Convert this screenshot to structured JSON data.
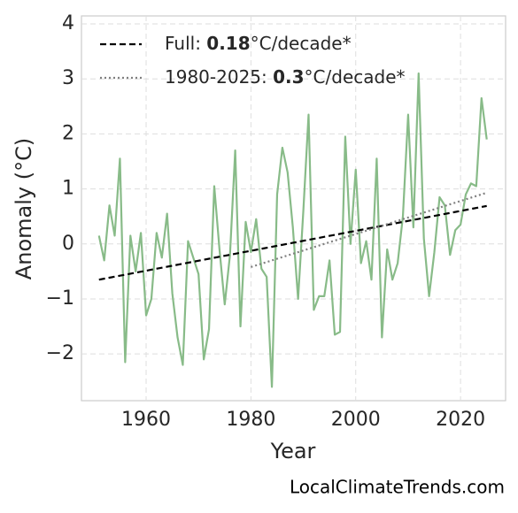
{
  "chart_data": {
    "type": "line",
    "xlabel": "Year",
    "ylabel": "Anomaly (°C)",
    "watermark": "LocalClimateTrends.com",
    "x": [
      1951,
      1952,
      1953,
      1954,
      1955,
      1956,
      1957,
      1958,
      1959,
      1960,
      1961,
      1962,
      1963,
      1964,
      1965,
      1966,
      1967,
      1968,
      1969,
      1970,
      1971,
      1972,
      1973,
      1974,
      1975,
      1976,
      1977,
      1978,
      1979,
      1980,
      1981,
      1982,
      1983,
      1984,
      1985,
      1986,
      1987,
      1988,
      1989,
      1990,
      1991,
      1992,
      1993,
      1994,
      1995,
      1996,
      1997,
      1998,
      1999,
      2000,
      2001,
      2002,
      2003,
      2004,
      2005,
      2006,
      2007,
      2008,
      2009,
      2010,
      2011,
      2012,
      2013,
      2014,
      2015,
      2016,
      2017,
      2018,
      2019,
      2020,
      2021,
      2022,
      2023,
      2024,
      2025
    ],
    "series": [
      {
        "color": "#88bb88",
        "values": [
          0.15,
          -0.3,
          0.7,
          0.15,
          1.55,
          -2.15,
          0.15,
          -0.5,
          0.2,
          -1.3,
          -1.0,
          0.2,
          -0.25,
          0.55,
          -0.9,
          -1.7,
          -2.2,
          0.05,
          -0.25,
          -0.55,
          -2.1,
          -1.55,
          1.05,
          -0.1,
          -1.1,
          -0.2,
          1.7,
          -1.5,
          0.4,
          -0.15,
          0.45,
          -0.45,
          -0.6,
          -2.6,
          0.9,
          1.75,
          1.3,
          0.3,
          -1.0,
          0.6,
          2.35,
          -1.2,
          -0.95,
          -0.95,
          -0.3,
          -1.65,
          -1.6,
          1.95,
          0.0,
          1.35,
          -0.35,
          0.05,
          -0.65,
          1.55,
          -1.7,
          -0.1,
          -0.65,
          -0.35,
          0.5,
          2.35,
          0.3,
          3.1,
          0.1,
          -0.95,
          -0.15,
          0.85,
          0.7,
          -0.2,
          0.25,
          0.35,
          0.9,
          1.1,
          1.05,
          2.65,
          1.9
        ]
      }
    ],
    "trends": [
      {
        "x": [
          1951,
          2025
        ],
        "values": [
          -0.65,
          0.69
        ],
        "color": "#000000",
        "style": "dashed",
        "label": {
          "text": "Full: ",
          "rate": "0.18",
          "unit": "°C/decade*"
        }
      },
      {
        "x": [
          1980,
          2025
        ],
        "values": [
          -0.42,
          0.93
        ],
        "color": "#7f7f7f",
        "style": "dotted",
        "label": {
          "text": "1980-2025: ",
          "rate": "0.3",
          "unit": "°C/decade*"
        }
      }
    ],
    "xlim": [
      1947.66,
      2028.6
    ],
    "ylim": [
      -2.85,
      4.145
    ],
    "xticks": [
      1960,
      1980,
      2000,
      2020
    ],
    "yticks": [
      {
        "value": -2,
        "label": "−2"
      },
      {
        "value": -1,
        "label": "−1"
      },
      0,
      1,
      2,
      3,
      4
    ],
    "grid": true
  }
}
